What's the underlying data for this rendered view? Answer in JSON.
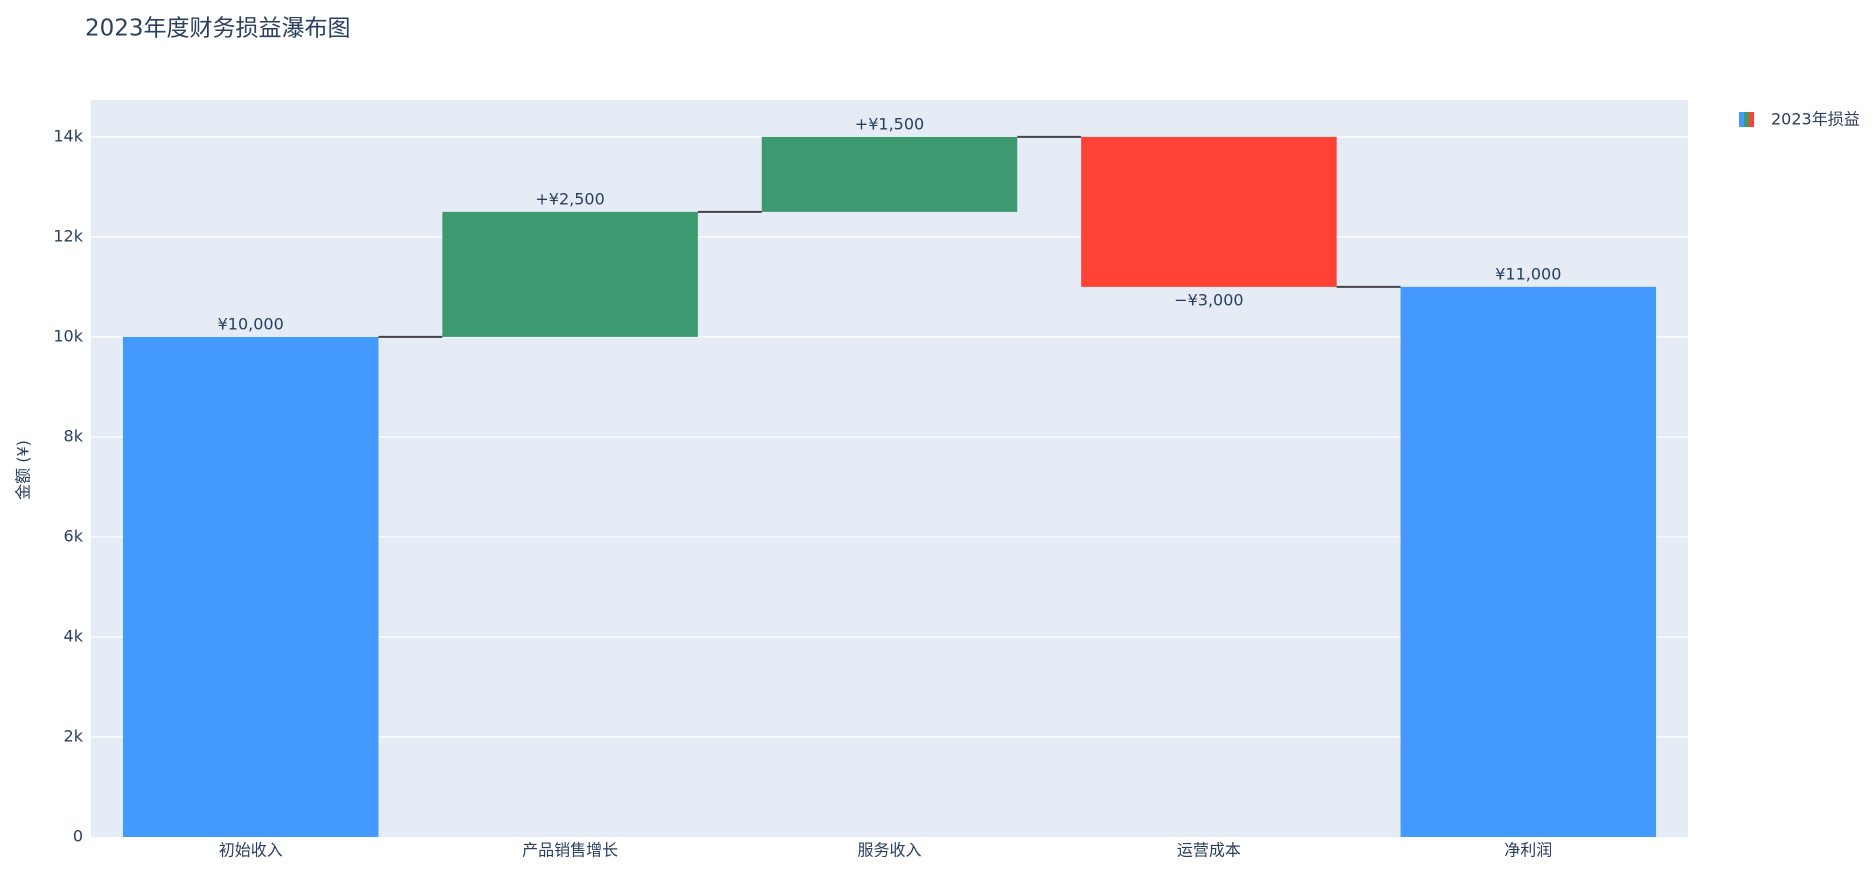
{
  "chart_data": {
    "type": "waterfall",
    "title": "2023年度财务损益瀑布图",
    "name": "2023年损益",
    "y_label": "金额 (¥)",
    "categories": [
      "初始收入",
      "产品销售增长",
      "服务收入",
      "运营成本",
      "净利润"
    ],
    "values": [
      10000,
      2500,
      1500,
      -3000,
      11000
    ],
    "measures": [
      "absolute",
      "relative",
      "relative",
      "relative",
      "total"
    ],
    "value_labels": [
      "¥10,000",
      "+¥2,500",
      "+¥1,500",
      "−¥3,000",
      "¥11,000"
    ],
    "colors": {
      "increasing": "#3d9970",
      "decreasing": "#ff4136",
      "total": "#4499ff"
    },
    "ylim": [
      0,
      14737
    ],
    "yticks": [
      0,
      {
        "value": 2000,
        "label": "2k"
      },
      {
        "value": 4000,
        "label": "4k"
      },
      {
        "value": 6000,
        "label": "6k"
      },
      {
        "value": 8000,
        "label": "8k"
      },
      {
        "value": 10000,
        "label": "10k"
      },
      {
        "value": 12000,
        "label": "12k"
      },
      {
        "value": 14000,
        "label": "14k"
      }
    ],
    "grid": true
  }
}
